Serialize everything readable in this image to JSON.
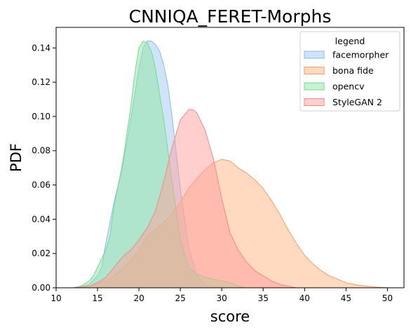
{
  "chart_data": {
    "type": "area",
    "title": "CNNIQA_FERET-Morphs",
    "xlabel": "score",
    "ylabel": "PDF",
    "xlim": [
      10,
      52
    ],
    "ylim": [
      0,
      0.152
    ],
    "xticks": [
      10,
      15,
      20,
      25,
      30,
      35,
      40,
      45,
      50
    ],
    "yticks": [
      0.0,
      0.02,
      0.04,
      0.06,
      0.08,
      0.1,
      0.12,
      0.14
    ],
    "ytick_labels": [
      "0.00",
      "0.02",
      "0.04",
      "0.06",
      "0.08",
      "0.10",
      "0.12",
      "0.14"
    ],
    "grid": false,
    "legend": {
      "title": "legend",
      "placement": "top-right"
    },
    "series": [
      {
        "name": "facemorpher",
        "fill": "#a1c9f4",
        "stroke": "#8fb8e8",
        "x": [
          12,
          13,
          14,
          15,
          15.5,
          16,
          17,
          18,
          19,
          20,
          20.5,
          21,
          21.5,
          22,
          22.5,
          23,
          23.5,
          24,
          25,
          26,
          27,
          28,
          29,
          30,
          31
        ],
        "y": [
          0.0,
          0.0005,
          0.002,
          0.007,
          0.012,
          0.026,
          0.05,
          0.07,
          0.098,
          0.128,
          0.14,
          0.144,
          0.144,
          0.142,
          0.138,
          0.13,
          0.118,
          0.1,
          0.058,
          0.024,
          0.007,
          0.002,
          0.0005,
          0.0001,
          0.0
        ]
      },
      {
        "name": "bona fide",
        "fill": "#ffb482",
        "stroke": "#f0a070",
        "x": [
          13,
          15,
          16,
          17,
          18,
          19,
          20,
          21,
          22,
          23,
          24,
          25,
          26,
          27,
          28,
          29,
          30,
          31,
          32,
          33,
          34,
          35,
          36,
          37,
          38,
          39,
          40,
          41,
          42,
          43,
          44,
          45,
          46,
          47,
          48,
          49,
          50
        ],
        "y": [
          0.0,
          0.002,
          0.004,
          0.007,
          0.011,
          0.016,
          0.022,
          0.03,
          0.034,
          0.038,
          0.043,
          0.05,
          0.058,
          0.064,
          0.069,
          0.073,
          0.075,
          0.074,
          0.07,
          0.067,
          0.063,
          0.058,
          0.051,
          0.043,
          0.034,
          0.026,
          0.019,
          0.014,
          0.01,
          0.007,
          0.005,
          0.003,
          0.002,
          0.0012,
          0.0007,
          0.0003,
          0.0001
        ]
      },
      {
        "name": "opencv",
        "fill": "#8de5a1",
        "stroke": "#78d890",
        "x": [
          12,
          13,
          14,
          14.5,
          15,
          15.5,
          16,
          16.5,
          17,
          18,
          19,
          19.5,
          20,
          20.5,
          21,
          21.5,
          22,
          23,
          24,
          25,
          26,
          27,
          28,
          29,
          30,
          31,
          32,
          33
        ],
        "y": [
          0.0,
          0.001,
          0.004,
          0.007,
          0.012,
          0.017,
          0.022,
          0.03,
          0.048,
          0.072,
          0.105,
          0.125,
          0.14,
          0.144,
          0.143,
          0.138,
          0.128,
          0.098,
          0.062,
          0.028,
          0.012,
          0.008,
          0.006,
          0.005,
          0.004,
          0.003,
          0.001,
          0.0
        ]
      },
      {
        "name": "StyleGAN 2",
        "fill": "#ff9f9b",
        "stroke": "#f08a86",
        "x": [
          12,
          14,
          15,
          16,
          17,
          18,
          19,
          20,
          21,
          22,
          23,
          24,
          25,
          26,
          26.5,
          27,
          28,
          29,
          30,
          31,
          32,
          33,
          34,
          35,
          36,
          37,
          38,
          39
        ],
        "y": [
          0.0,
          0.001,
          0.003,
          0.006,
          0.012,
          0.018,
          0.022,
          0.028,
          0.035,
          0.045,
          0.062,
          0.082,
          0.098,
          0.104,
          0.104,
          0.102,
          0.092,
          0.075,
          0.052,
          0.032,
          0.022,
          0.015,
          0.01,
          0.007,
          0.004,
          0.002,
          0.001,
          0.0
        ]
      }
    ]
  }
}
